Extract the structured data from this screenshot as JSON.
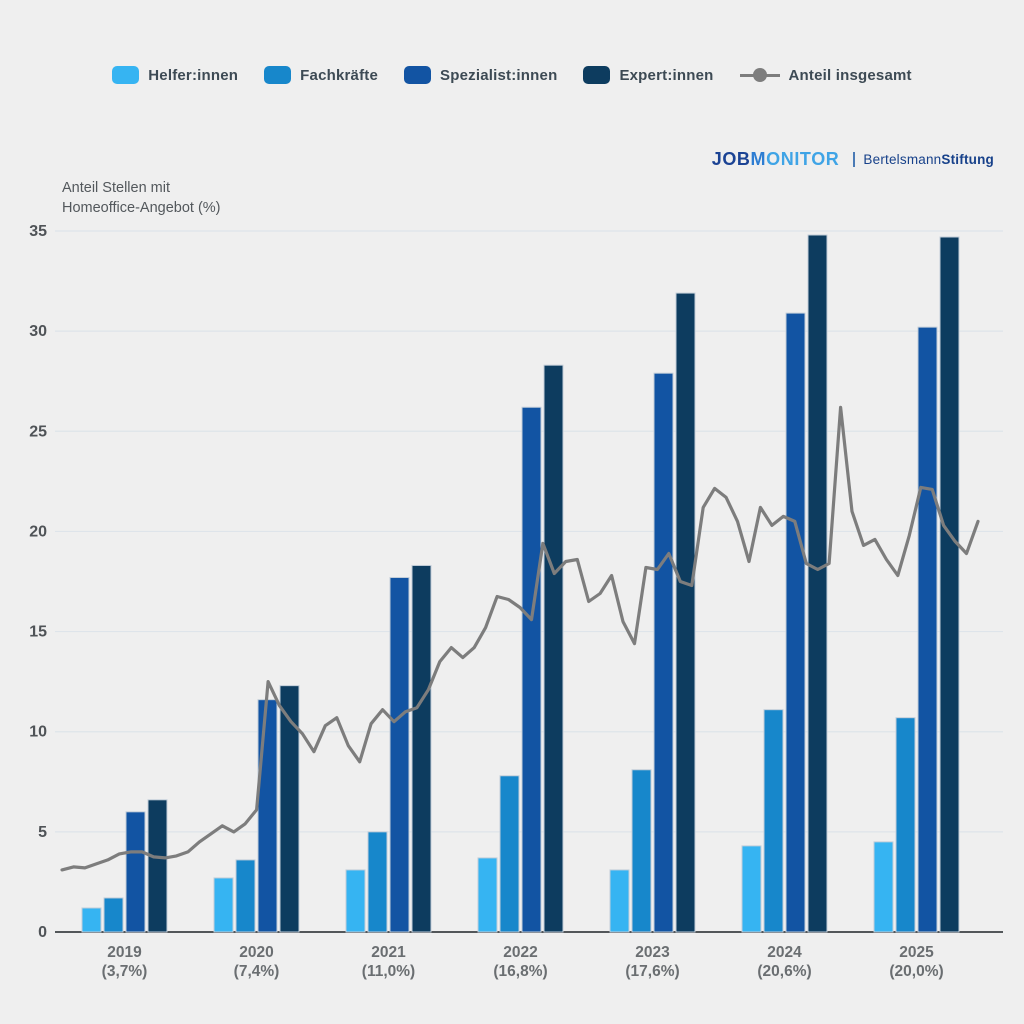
{
  "branding": {
    "logo_part1": "JOB",
    "logo_part2": "M",
    "logo_part3": "ONITOR",
    "org_regular": "Bertelsmann",
    "org_bold": "Stiftung"
  },
  "colors": {
    "background": "#efefef",
    "grid": "#dee4ea",
    "axis_line": "#53575a",
    "tick_text": "#4f5357",
    "xlabel_text": "#6a6e71",
    "bar_stroke": "#c3ced9",
    "line": "#7d7d7d"
  },
  "chart_data": {
    "type": "bar",
    "title": "Anteil Stellen mit Homeoffice-Angebot (%)",
    "ylabel_lines": [
      "Anteil Stellen  mit",
      "Homeoffice-Angebot (%)"
    ],
    "categories": [
      "2019",
      "2020",
      "2021",
      "2022",
      "2023",
      "2024",
      "2025"
    ],
    "category_sublabels": [
      "(3,7%)",
      "(7,4%)",
      "(11,0%)",
      "(16,8%)",
      "(17,6%)",
      "(20,6%)",
      "(20,0%)"
    ],
    "ylim": [
      0,
      35
    ],
    "yticks": [
      0,
      5,
      10,
      15,
      20,
      25,
      30,
      35
    ],
    "grid": true,
    "legend_position": "top",
    "series": [
      {
        "name": "Helfer:innen",
        "color": "#36b4f2",
        "values": [
          1.2,
          2.7,
          3.1,
          3.7,
          3.1,
          4.3,
          4.5
        ]
      },
      {
        "name": "Fachkräfte",
        "color": "#1787cb",
        "values": [
          1.7,
          3.6,
          5.0,
          7.8,
          8.1,
          11.1,
          10.7
        ]
      },
      {
        "name": "Spezialist:innen",
        "color": "#1254a3",
        "values": [
          6.0,
          11.6,
          17.7,
          26.2,
          27.9,
          30.9,
          30.2
        ]
      },
      {
        "name": "Expert:innen",
        "color": "#0d3c5f",
        "values": [
          6.6,
          12.3,
          18.3,
          28.3,
          31.9,
          34.8,
          34.7
        ]
      }
    ],
    "line_series": {
      "name": "Anteil insgesamt",
      "color": "#7d7d7d",
      "note": "monthly share Jan 2019 - Sep 2025, percent",
      "values": [
        3.1,
        3.25,
        3.2,
        3.4,
        3.6,
        3.9,
        4.0,
        4.0,
        3.75,
        3.7,
        3.8,
        4.0,
        4.5,
        4.9,
        5.3,
        5.0,
        5.4,
        6.1,
        12.5,
        11.3,
        10.5,
        9.9,
        9.0,
        10.3,
        10.7,
        9.3,
        8.5,
        10.4,
        11.1,
        10.5,
        11.0,
        11.2,
        12.1,
        13.5,
        14.2,
        13.7,
        14.2,
        15.2,
        16.75,
        16.6,
        16.2,
        15.6,
        19.4,
        17.9,
        18.5,
        18.6,
        16.5,
        16.9,
        17.8,
        15.5,
        14.4,
        18.2,
        18.1,
        18.9,
        17.5,
        17.3,
        21.2,
        22.15,
        21.7,
        20.5,
        18.5,
        21.2,
        20.3,
        20.75,
        20.5,
        18.4,
        18.1,
        18.4,
        26.2,
        21.0,
        19.3,
        19.6,
        18.6,
        17.8,
        19.8,
        22.2,
        22.1,
        20.3,
        19.5,
        18.9,
        20.5
      ]
    }
  }
}
